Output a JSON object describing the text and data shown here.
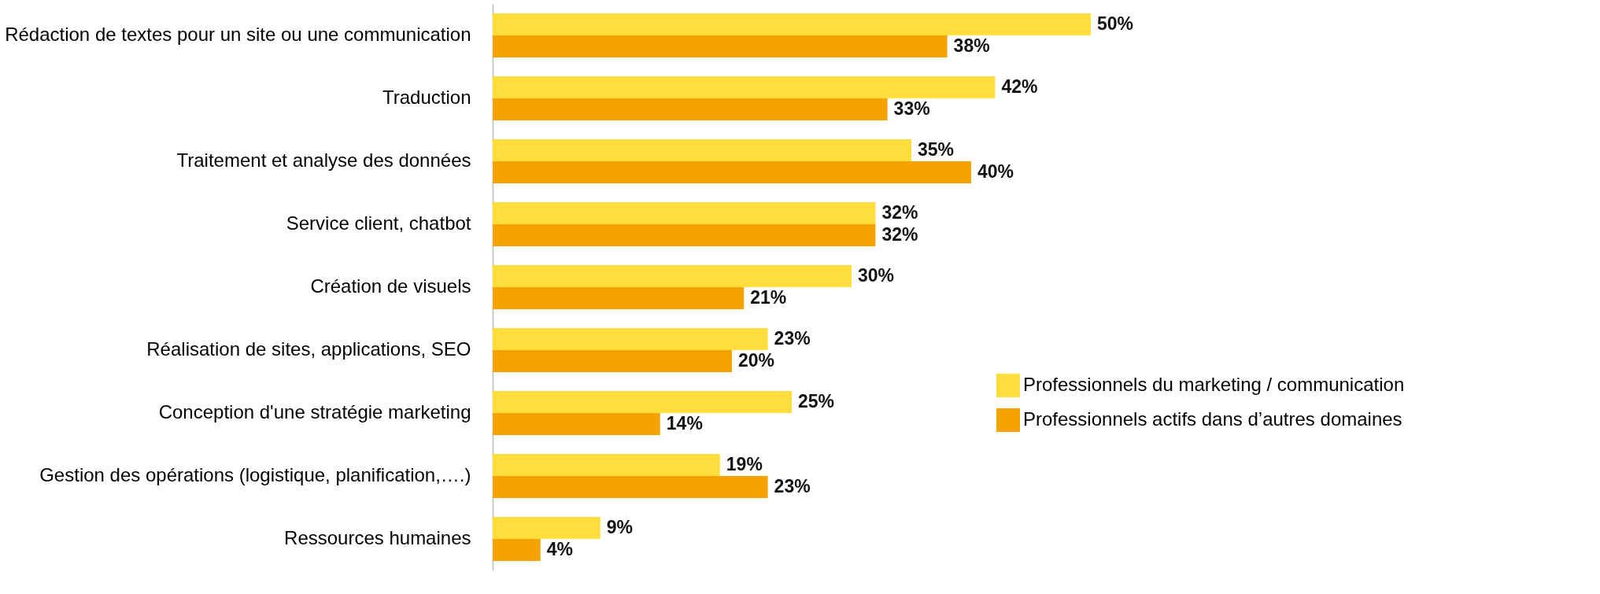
{
  "chart_data": {
    "type": "bar",
    "orientation": "horizontal",
    "categories": [
      "Rédaction de textes pour un site ou une communication",
      "Traduction",
      "Traitement et analyse des données",
      "Service client, chatbot",
      "Création de visuels",
      "Réalisation de sites, applications, SEO",
      "Conception d'une stratégie marketing",
      "Gestion des opérations (logistique, planification,….)",
      "Ressources humaines"
    ],
    "series": [
      {
        "name": "Professionnels du marketing / communication",
        "color": "#ffdd3c",
        "values": [
          50,
          42,
          35,
          32,
          30,
          23,
          25,
          19,
          9
        ],
        "value_labels": [
          "50%",
          "42%",
          "35%",
          "32%",
          "30%",
          "23%",
          "25%",
          "19%",
          "9%"
        ]
      },
      {
        "name": "Professionnels actifs dans d’autres domaines",
        "color": "#f5a300",
        "values": [
          38,
          33,
          40,
          32,
          21,
          20,
          14,
          23,
          4
        ],
        "value_labels": [
          "38%",
          "33%",
          "40%",
          "32%",
          "21%",
          "20%",
          "14%",
          "23%",
          "4%"
        ]
      }
    ],
    "legend": "bottom right",
    "tick_labels": "y"
  }
}
